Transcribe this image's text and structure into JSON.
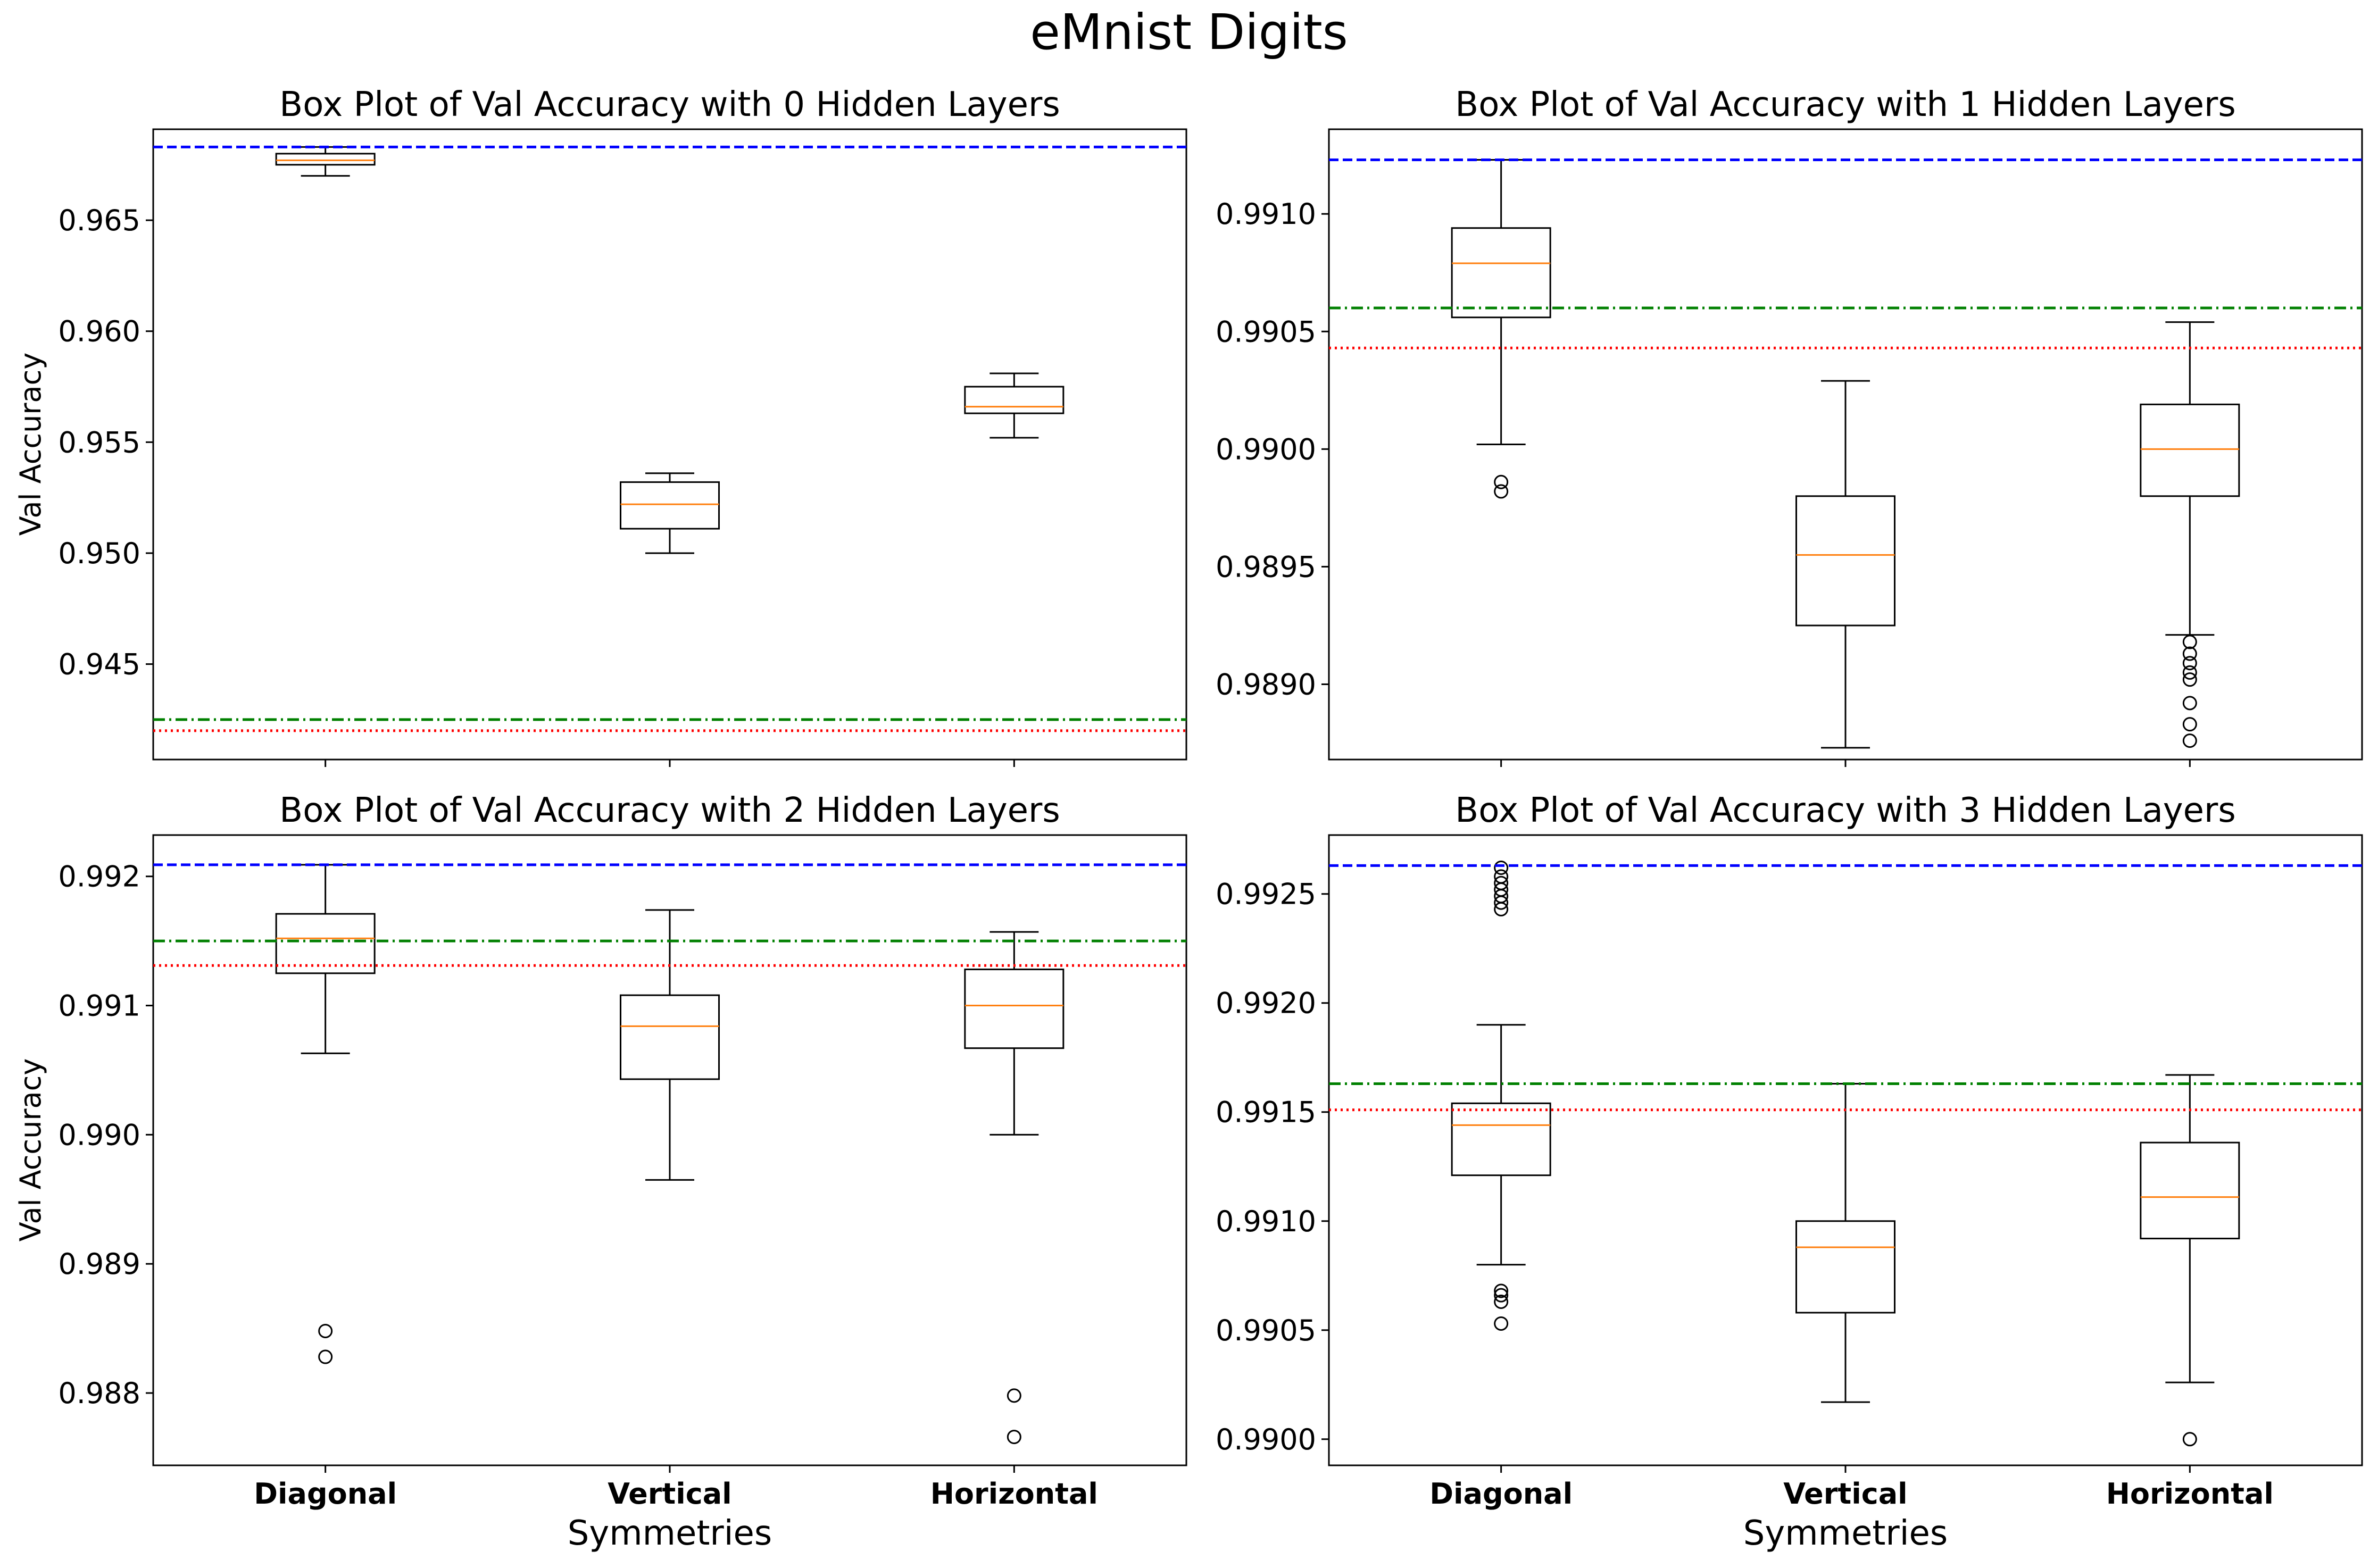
{
  "figure": {
    "title": "eMnist Digits"
  },
  "chart_data": [
    {
      "type": "box",
      "title": "Box Plot of Val Accuracy with 0 Hidden Layers",
      "xlabel": "",
      "ylabel": "Val Accuracy",
      "categories": [
        "Diagonal",
        "Vertical",
        "Horizontal"
      ],
      "show_category_labels": false,
      "ylim": [
        0.9407,
        0.9691
      ],
      "yticks": [
        0.945,
        0.95,
        0.955,
        0.96,
        0.965
      ],
      "ytick_labels": [
        "0.945",
        "0.950",
        "0.955",
        "0.960",
        "0.965"
      ],
      "boxes": [
        {
          "category": "Diagonal",
          "whisker_low": 0.967,
          "q1": 0.9675,
          "median": 0.9677,
          "q3": 0.968,
          "whisker_high": 0.9683,
          "outliers": []
        },
        {
          "category": "Vertical",
          "whisker_low": 0.95,
          "q1": 0.9511,
          "median": 0.9522,
          "q3": 0.9532,
          "whisker_high": 0.9536,
          "outliers": []
        },
        {
          "category": "Horizontal",
          "whisker_low": 0.9552,
          "q1": 0.9563,
          "median": 0.9566,
          "q3": 0.9575,
          "whisker_high": 0.9581,
          "outliers": []
        }
      ],
      "reference_lines": [
        {
          "value": 0.9683,
          "color": "#0000ff",
          "style": "dashed"
        },
        {
          "value": 0.9425,
          "color": "#008000",
          "style": "dashdot"
        },
        {
          "value": 0.942,
          "color": "#ff0000",
          "style": "dotted"
        }
      ]
    },
    {
      "type": "box",
      "title": "Box Plot of Val Accuracy with 1 Hidden Layers",
      "xlabel": "",
      "ylabel": "",
      "categories": [
        "Diagonal",
        "Vertical",
        "Horizontal"
      ],
      "show_category_labels": false,
      "ylim": [
        0.98868,
        0.99136
      ],
      "yticks": [
        0.989,
        0.9895,
        0.99,
        0.9905,
        0.991
      ],
      "ytick_labels": [
        "0.9890",
        "0.9895",
        "0.9900",
        "0.9905",
        "0.9910"
      ],
      "boxes": [
        {
          "category": "Diagonal",
          "whisker_low": 0.99002,
          "q1": 0.99056,
          "median": 0.99079,
          "q3": 0.99094,
          "whisker_high": 0.99123,
          "outliers": [
            0.98982,
            0.98986
          ]
        },
        {
          "category": "Vertical",
          "whisker_low": 0.98873,
          "q1": 0.98925,
          "median": 0.98955,
          "q3": 0.9898,
          "whisker_high": 0.99029,
          "outliers": []
        },
        {
          "category": "Horizontal",
          "whisker_low": 0.98921,
          "q1": 0.9898,
          "median": 0.99,
          "q3": 0.99019,
          "whisker_high": 0.99054,
          "outliers": [
            0.98918,
            0.98913,
            0.98909,
            0.98905,
            0.98902,
            0.98892,
            0.98883,
            0.98876
          ]
        }
      ],
      "reference_lines": [
        {
          "value": 0.99123,
          "color": "#0000ff",
          "style": "dashed"
        },
        {
          "value": 0.9906,
          "color": "#008000",
          "style": "dashdot"
        },
        {
          "value": 0.99043,
          "color": "#ff0000",
          "style": "dotted"
        }
      ]
    },
    {
      "type": "box",
      "title": "Box Plot of Val Accuracy with 2 Hidden Layers",
      "xlabel": "Symmetries",
      "ylabel": "Val Accuracy",
      "categories": [
        "Diagonal",
        "Vertical",
        "Horizontal"
      ],
      "show_category_labels": true,
      "ylim": [
        0.98744,
        0.99232
      ],
      "yticks": [
        0.988,
        0.989,
        0.99,
        0.991,
        0.992
      ],
      "ytick_labels": [
        "0.988",
        "0.989",
        "0.990",
        "0.991",
        "0.992"
      ],
      "boxes": [
        {
          "category": "Diagonal",
          "whisker_low": 0.99063,
          "q1": 0.99125,
          "median": 0.99152,
          "q3": 0.99171,
          "whisker_high": 0.99209,
          "outliers": [
            0.98848,
            0.98828
          ]
        },
        {
          "category": "Vertical",
          "whisker_low": 0.98965,
          "q1": 0.99043,
          "median": 0.99084,
          "q3": 0.99108,
          "whisker_high": 0.99174,
          "outliers": []
        },
        {
          "category": "Horizontal",
          "whisker_low": 0.99,
          "q1": 0.99067,
          "median": 0.991,
          "q3": 0.99128,
          "whisker_high": 0.99157,
          "outliers": [
            0.98798,
            0.98766
          ]
        }
      ],
      "reference_lines": [
        {
          "value": 0.99209,
          "color": "#0000ff",
          "style": "dashed"
        },
        {
          "value": 0.9915,
          "color": "#008000",
          "style": "dashdot"
        },
        {
          "value": 0.99131,
          "color": "#ff0000",
          "style": "dotted"
        }
      ]
    },
    {
      "type": "box",
      "title": "Box Plot of Val Accuracy with 3 Hidden Layers",
      "xlabel": "Symmetries",
      "ylabel": "",
      "categories": [
        "Diagonal",
        "Vertical",
        "Horizontal"
      ],
      "show_category_labels": true,
      "ylim": [
        0.98988,
        0.99277
      ],
      "yticks": [
        0.99,
        0.9905,
        0.991,
        0.9915,
        0.992,
        0.9925
      ],
      "ytick_labels": [
        "0.9900",
        "0.9905",
        "0.9910",
        "0.9915",
        "0.9920",
        "0.9925"
      ],
      "boxes": [
        {
          "category": "Diagonal",
          "whisker_low": 0.9908,
          "q1": 0.99121,
          "median": 0.99144,
          "q3": 0.99154,
          "whisker_high": 0.9919,
          "outliers": [
            0.99262,
            0.99258,
            0.99255,
            0.99252,
            0.99249,
            0.99246,
            0.99243,
            0.99068,
            0.99066,
            0.99063,
            0.99053
          ]
        },
        {
          "category": "Vertical",
          "whisker_low": 0.99017,
          "q1": 0.99058,
          "median": 0.99088,
          "q3": 0.991,
          "whisker_high": 0.99163,
          "outliers": []
        },
        {
          "category": "Horizontal",
          "whisker_low": 0.99026,
          "q1": 0.99092,
          "median": 0.99111,
          "q3": 0.99136,
          "whisker_high": 0.99167,
          "outliers": [
            0.99
          ]
        }
      ],
      "reference_lines": [
        {
          "value": 0.99263,
          "color": "#0000ff",
          "style": "dashed"
        },
        {
          "value": 0.99163,
          "color": "#008000",
          "style": "dashdot"
        },
        {
          "value": 0.99151,
          "color": "#ff0000",
          "style": "dotted"
        }
      ]
    }
  ]
}
